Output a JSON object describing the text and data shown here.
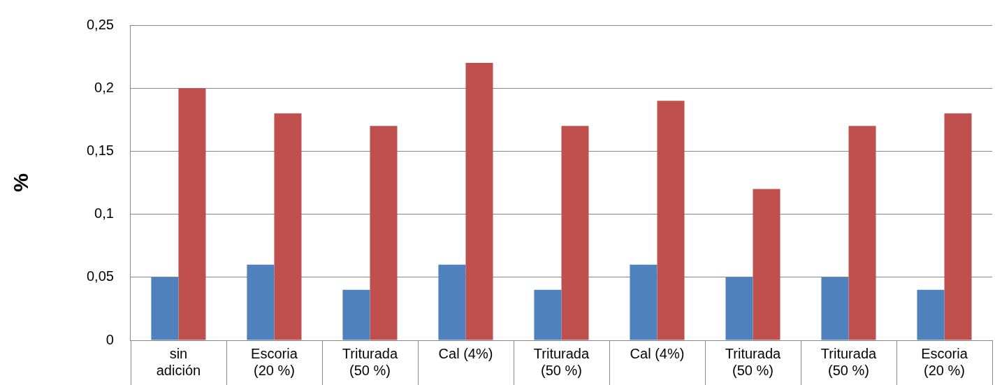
{
  "chart_data": {
    "type": "bar",
    "ylabel": "%",
    "categories": [
      "sin\nadición",
      "Escoria\n(20 %)",
      "Triturada\n(50 %)",
      "Cal (4%)",
      "Triturada\n(50 %)",
      "Cal (4%)",
      "Triturada\n(50 %)",
      "Triturada\n(50 %)",
      "Escoria\n(20 %)"
    ],
    "series": [
      {
        "color": "#4f81bd",
        "values": [
          0.05,
          0.06,
          0.04,
          0.06,
          0.04,
          0.06,
          0.05,
          0.05,
          0.04
        ]
      },
      {
        "color": "#c0504d",
        "values": [
          0.2,
          0.18,
          0.17,
          0.22,
          0.17,
          0.19,
          0.12,
          0.17,
          0.18
        ]
      }
    ],
    "ylim": [
      0,
      0.25
    ],
    "yticks": [
      {
        "value": 0,
        "label": "0"
      },
      {
        "value": 0.05,
        "label": "0,05"
      },
      {
        "value": 0.1,
        "label": "0,1"
      },
      {
        "value": 0.15,
        "label": "0,15"
      },
      {
        "value": 0.2,
        "label": "0,2"
      },
      {
        "value": 0.25,
        "label": "0,25"
      }
    ],
    "grid": "y",
    "legend": false
  }
}
